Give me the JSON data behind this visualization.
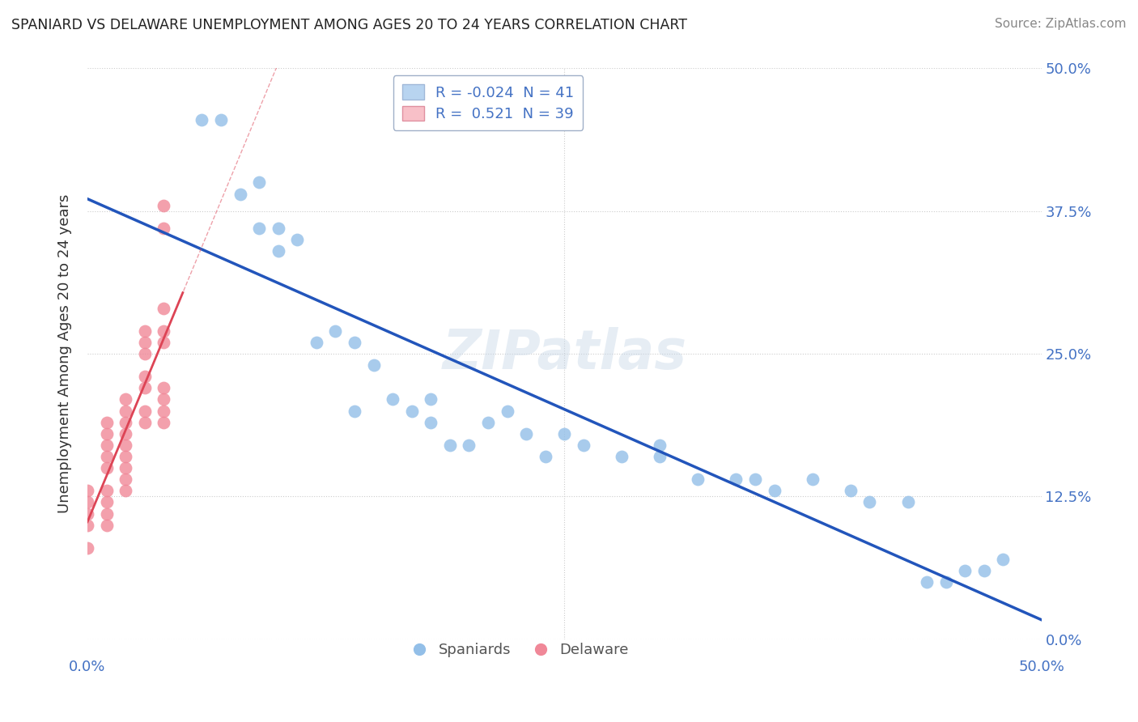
{
  "title": "SPANIARD VS DELAWARE UNEMPLOYMENT AMONG AGES 20 TO 24 YEARS CORRELATION CHART",
  "source": "Source: ZipAtlas.com",
  "ylabel": "Unemployment Among Ages 20 to 24 years",
  "yticks": [
    0.0,
    0.125,
    0.25,
    0.375,
    0.5
  ],
  "ytick_labels": [
    "0.0%",
    "12.5%",
    "25.0%",
    "37.5%",
    "50.0%"
  ],
  "xlim": [
    0.0,
    0.5
  ],
  "ylim": [
    0.0,
    0.5
  ],
  "background_color": "#ffffff",
  "grid_color": "#cccccc",
  "scatter_blue_color": "#93bfe8",
  "scatter_pink_color": "#f08898",
  "trend_blue_color": "#2255bb",
  "trend_pink_color": "#dd4455",
  "trend_pink_dashed": true,
  "spaniards_x": [
    0.06,
    0.07,
    0.08,
    0.09,
    0.09,
    0.1,
    0.1,
    0.11,
    0.12,
    0.13,
    0.14,
    0.14,
    0.15,
    0.16,
    0.17,
    0.18,
    0.18,
    0.19,
    0.2,
    0.21,
    0.22,
    0.23,
    0.24,
    0.25,
    0.26,
    0.28,
    0.3,
    0.3,
    0.32,
    0.34,
    0.35,
    0.36,
    0.38,
    0.4,
    0.41,
    0.43,
    0.44,
    0.45,
    0.46,
    0.47,
    0.48
  ],
  "spaniards_y": [
    0.455,
    0.455,
    0.39,
    0.4,
    0.36,
    0.36,
    0.34,
    0.35,
    0.26,
    0.27,
    0.26,
    0.2,
    0.24,
    0.21,
    0.2,
    0.21,
    0.19,
    0.17,
    0.17,
    0.19,
    0.2,
    0.18,
    0.16,
    0.18,
    0.17,
    0.16,
    0.16,
    0.17,
    0.14,
    0.14,
    0.14,
    0.13,
    0.14,
    0.13,
    0.12,
    0.12,
    0.05,
    0.05,
    0.06,
    0.06,
    0.07
  ],
  "delaware_x": [
    0.0,
    0.0,
    0.0,
    0.0,
    0.0,
    0.01,
    0.01,
    0.01,
    0.01,
    0.01,
    0.01,
    0.01,
    0.01,
    0.01,
    0.02,
    0.02,
    0.02,
    0.02,
    0.02,
    0.02,
    0.02,
    0.02,
    0.02,
    0.03,
    0.03,
    0.03,
    0.03,
    0.03,
    0.03,
    0.03,
    0.04,
    0.04,
    0.04,
    0.04,
    0.04,
    0.04,
    0.04,
    0.04,
    0.04
  ],
  "delaware_y": [
    0.13,
    0.12,
    0.11,
    0.1,
    0.08,
    0.13,
    0.12,
    0.11,
    0.1,
    0.15,
    0.16,
    0.17,
    0.18,
    0.19,
    0.13,
    0.14,
    0.15,
    0.16,
    0.17,
    0.18,
    0.19,
    0.2,
    0.21,
    0.19,
    0.2,
    0.22,
    0.23,
    0.25,
    0.26,
    0.27,
    0.19,
    0.2,
    0.21,
    0.22,
    0.26,
    0.27,
    0.29,
    0.36,
    0.38
  ]
}
